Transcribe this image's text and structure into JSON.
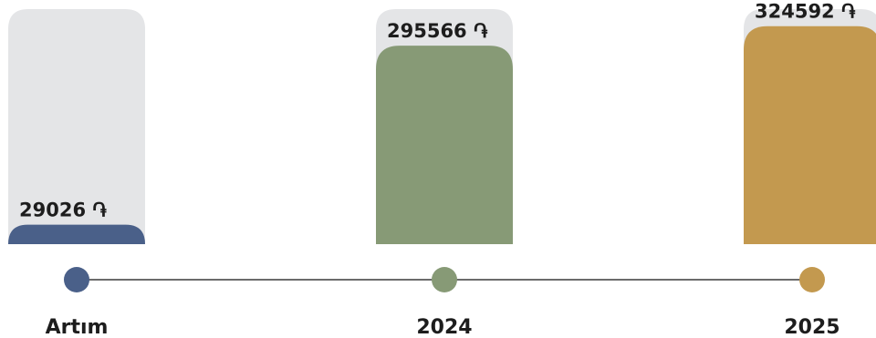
{
  "chart_data": {
    "type": "bar",
    "categories": [
      "Artım",
      "2024",
      "2025"
    ],
    "values": [
      29026,
      295566,
      324592
    ],
    "value_labels": [
      "29026 ֏",
      "295566 ֏",
      "324592 ֏"
    ],
    "currency_symbol": "֏",
    "ylim": [
      0,
      350000
    ],
    "grid": false,
    "legend": "none",
    "colors": [
      "#4a6089",
      "#879a76",
      "#c3994f"
    ],
    "track_color": "#e4e5e7",
    "timeline_color": "#6b6b6b"
  }
}
